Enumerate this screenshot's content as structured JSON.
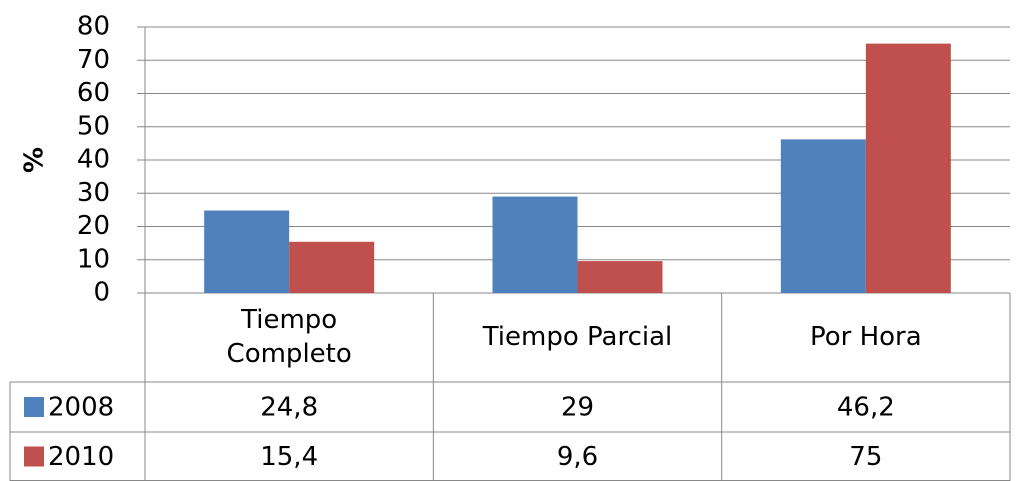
{
  "chart_data": {
    "type": "bar",
    "ylabel": "%",
    "categories": [
      "Tiempo Completo",
      "Tiempo Parcial",
      "Por Hora"
    ],
    "series": [
      {
        "name": "2008",
        "color": "#4f81bd",
        "values": [
          24.8,
          29,
          46.2
        ],
        "value_labels": [
          "24,8",
          "29",
          "46,2"
        ]
      },
      {
        "name": "2010",
        "color": "#c0504d",
        "values": [
          15.4,
          9.6,
          75
        ],
        "value_labels": [
          "15,4",
          "9,6",
          "75"
        ]
      }
    ],
    "ylim": [
      0,
      80
    ],
    "yticks": [
      0,
      10,
      20,
      30,
      40,
      50,
      60,
      70,
      80
    ],
    "grid": true
  }
}
